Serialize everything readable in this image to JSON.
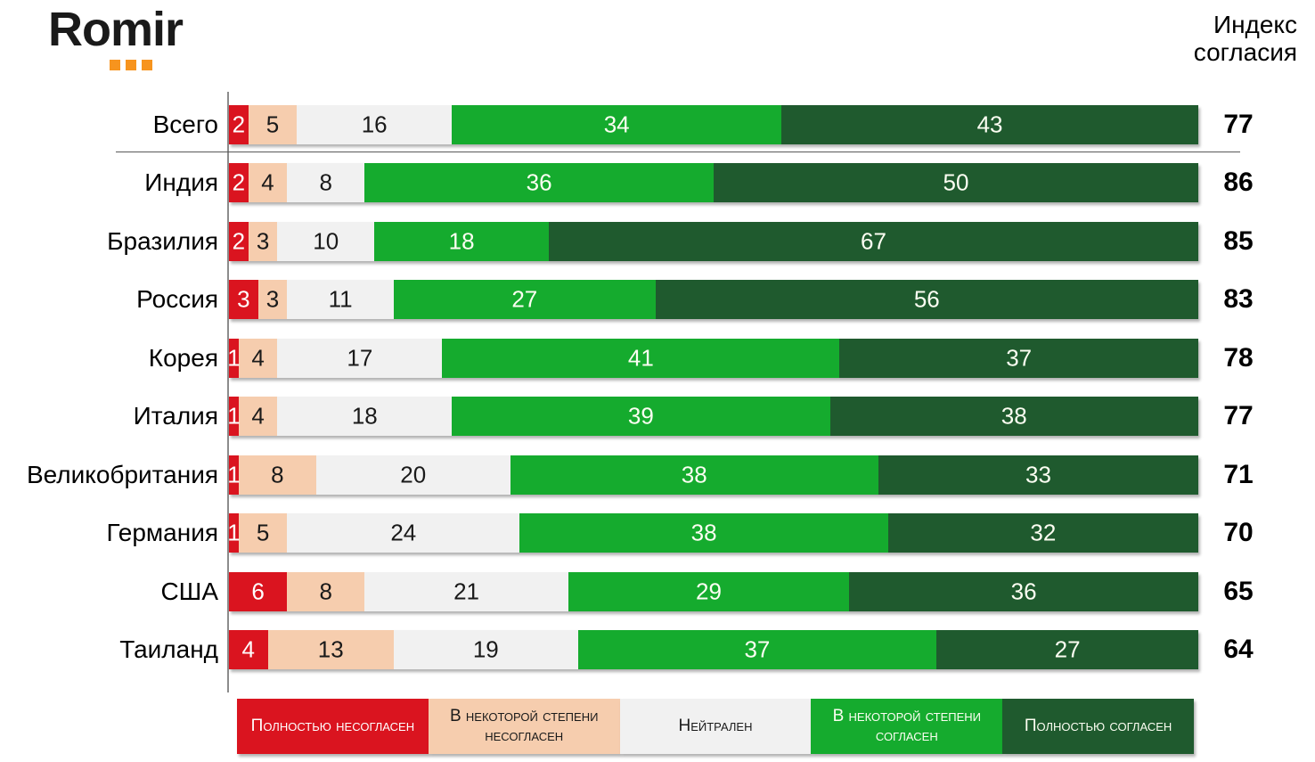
{
  "brand": {
    "logo_text": "Romir",
    "dot_color": "#F7941E"
  },
  "header": {
    "title": "Индекс согласия"
  },
  "chart_data": {
    "type": "bar",
    "orientation": "horizontal",
    "stacked": true,
    "xlim": [
      0,
      100
    ],
    "grid": false,
    "legend_position": "bottom",
    "categories": [
      "Всего",
      "Индия",
      "Бразилия",
      "Россия",
      "Корея",
      "Италия",
      "Великобритания",
      "Германия",
      "США",
      "Таиланд"
    ],
    "series": [
      {
        "name": "Полностью несогласен",
        "color": "#DA141F",
        "text_color": "#FFFFFF",
        "values": [
          2,
          2,
          2,
          3,
          1,
          1,
          1,
          1,
          6,
          4
        ]
      },
      {
        "name": "В некоторой степени несогласен",
        "color": "#F6CDAE",
        "text_color": "#1A1A1A",
        "values": [
          5,
          4,
          3,
          3,
          4,
          4,
          8,
          5,
          8,
          13
        ]
      },
      {
        "name": "Нейтрален",
        "color": "#F1F1F1",
        "text_color": "#1A1A1A",
        "values": [
          16,
          8,
          10,
          11,
          17,
          18,
          20,
          24,
          21,
          19
        ]
      },
      {
        "name": "В некоторой степени согласен",
        "color": "#15AB2E",
        "text_color": "#FCFEF2",
        "values": [
          34,
          36,
          18,
          27,
          41,
          39,
          38,
          38,
          29,
          37
        ]
      },
      {
        "name": "Полностью согласен",
        "color": "#1F5A2E",
        "text_color": "#FCFEF2",
        "values": [
          43,
          50,
          67,
          56,
          37,
          38,
          33,
          32,
          36,
          27
        ]
      }
    ],
    "index_column": {
      "label": "Индекс согласия",
      "values": [
        77,
        86,
        85,
        83,
        78,
        77,
        71,
        70,
        65,
        64
      ]
    }
  }
}
